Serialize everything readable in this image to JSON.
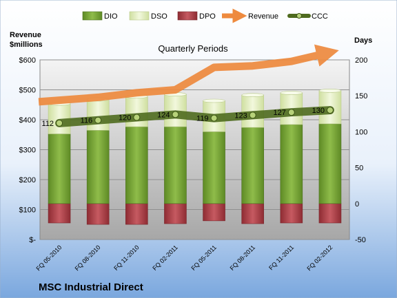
{
  "company": "MSC Industrial Direct",
  "colors": {
    "dio": "#7fa93a",
    "dso": "#e4efc4",
    "dpo": "#b5434a",
    "revenue": "#ee8a3e",
    "ccc": "#4f6b1f"
  },
  "chart_data": {
    "type": "bar",
    "title": "Quarterly Periods",
    "ylabel_left": "Revenue\n$millions",
    "ylabel_right": "Days",
    "left_axis": {
      "range": [
        0,
        600
      ],
      "ticks": [
        0,
        100,
        200,
        300,
        400,
        500,
        600
      ],
      "tick_labels": [
        "$-",
        "$100",
        "$200",
        "$300",
        "$400",
        "$500",
        "$600"
      ]
    },
    "right_axis": {
      "range": [
        -50,
        200
      ],
      "ticks": [
        -50,
        0,
        50,
        100,
        150,
        200
      ],
      "tick_labels": [
        "-50",
        "0",
        "50",
        "100",
        "150",
        "200"
      ]
    },
    "categories": [
      "FQ 05-2010",
      "FQ 08-2010",
      "FQ 11-2010",
      "FQ 02-2011",
      "FQ 05-2011",
      "FQ 08-2011",
      "FQ 11-2011",
      "FQ 02-2012"
    ],
    "legend": [
      "DIO",
      "DSO",
      "DPO",
      "Revenue",
      "CCC"
    ],
    "legend_position": "top",
    "series": [
      {
        "name": "DIO",
        "axis": "right",
        "values": [
          97,
          102,
          107,
          107,
          100,
          106,
          110,
          111
        ]
      },
      {
        "name": "DSO",
        "axis": "right",
        "values": [
          42,
          43,
          42,
          45,
          43,
          45,
          44,
          46
        ]
      },
      {
        "name": "DPO",
        "axis": "right",
        "values": [
          -27,
          -29,
          -29,
          -28,
          -24,
          -28,
          -27,
          -27
        ]
      },
      {
        "name": "Revenue",
        "axis": "left",
        "values": [
          460,
          475,
          490,
          500,
          575,
          580,
          595,
          625
        ]
      },
      {
        "name": "CCC",
        "axis": "right",
        "values": [
          112,
          116,
          120,
          124,
          119,
          123,
          127,
          130
        ]
      }
    ],
    "data_labels": [
      "112",
      "116",
      "120",
      "124",
      "119",
      "123",
      "127",
      "130"
    ]
  }
}
